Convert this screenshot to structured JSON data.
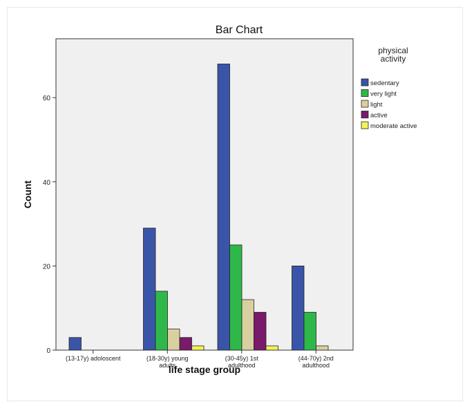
{
  "chart_data": {
    "type": "bar",
    "title": "Bar Chart",
    "xlabel": "life stage group",
    "ylabel": "Count",
    "ylim": [
      0,
      74
    ],
    "yticks": [
      0,
      20,
      40,
      60
    ],
    "grid": false,
    "legend_position": "right",
    "legend_title": [
      "physical",
      "activity"
    ],
    "categories": [
      [
        "(13-17y) adoloscent"
      ],
      [
        "(18-30y) young",
        "adults"
      ],
      [
        "(30-45y) 1st",
        "adulthood"
      ],
      [
        "(44-70y) 2nd",
        "adulthood"
      ]
    ],
    "series": [
      {
        "name": "sedentary",
        "color": "#3a55a8",
        "values": [
          3,
          29,
          68,
          20
        ]
      },
      {
        "name": "very light",
        "color": "#2fb84a",
        "values": [
          0,
          14,
          25,
          9
        ]
      },
      {
        "name": "light",
        "color": "#d9d0a0",
        "values": [
          0,
          5,
          12,
          1
        ]
      },
      {
        "name": "active",
        "color": "#7a1a6a",
        "values": [
          0,
          3,
          9,
          0
        ]
      },
      {
        "name": "moderate active",
        "color": "#f2f25a",
        "values": [
          0,
          1,
          1,
          0
        ]
      }
    ]
  }
}
